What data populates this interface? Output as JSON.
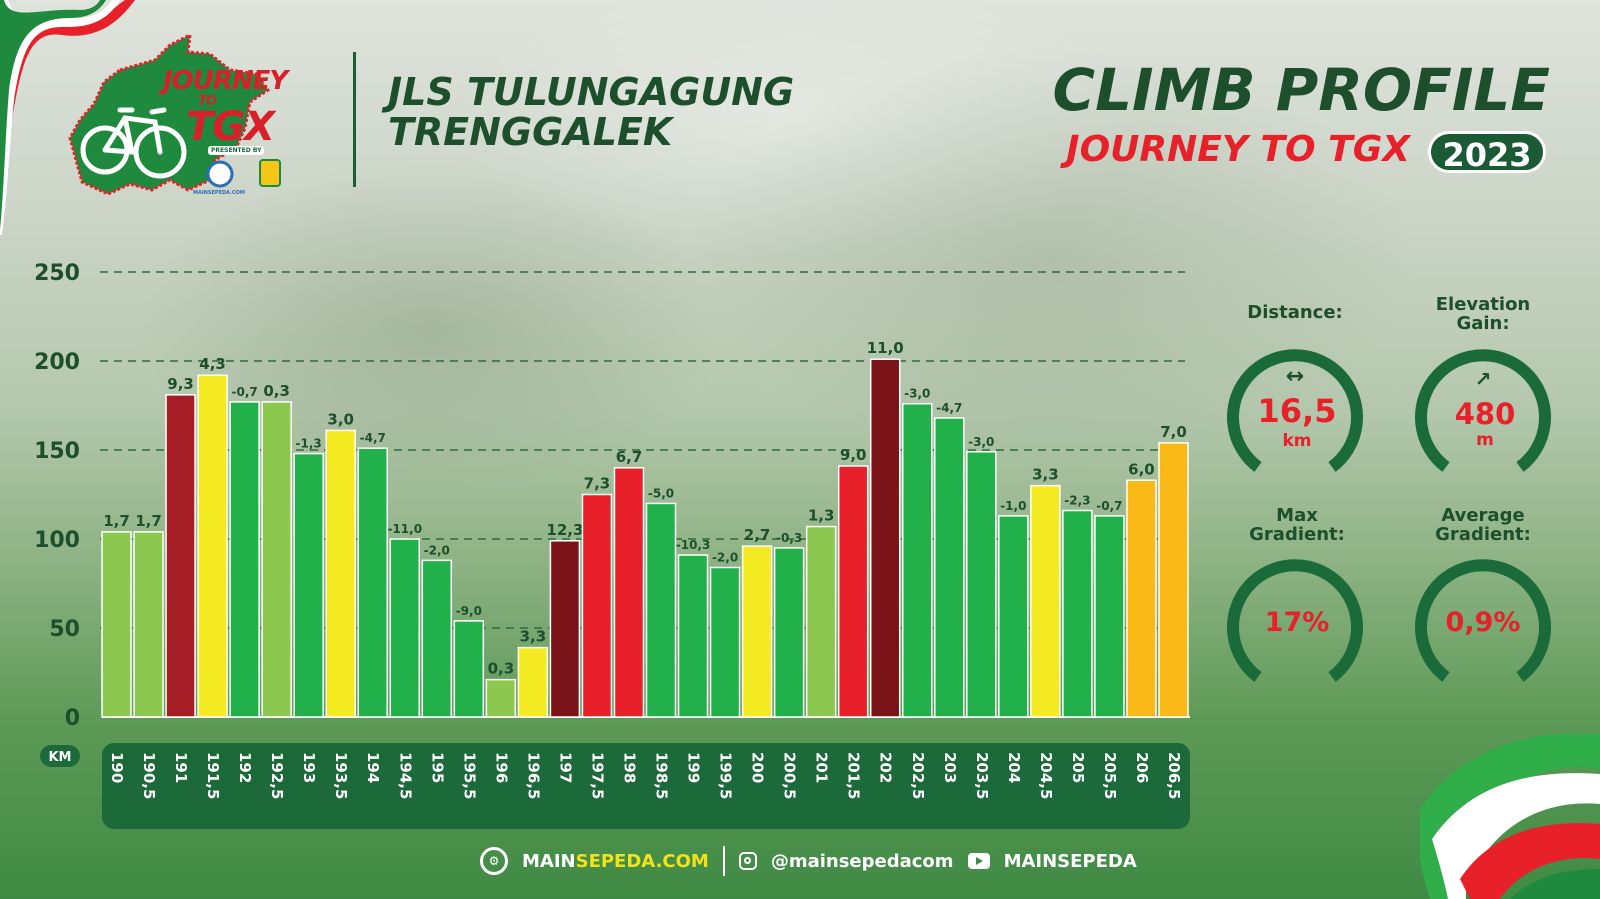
{
  "header": {
    "logo": {
      "line1": "JOURNEY",
      "line2": "TO",
      "line3": "TGX",
      "presented": "PRESENTED BY",
      "sponsor": "MAINSEPEDA.COM"
    },
    "route_line1": "JLS TULUNGAGUNG",
    "route_line2": "TRENGGALEK",
    "title": "CLIMB PROFILE",
    "subtitle": "JOURNEY TO TGX",
    "year": "2023"
  },
  "stats": {
    "distance": {
      "label": "Distance:",
      "value": "16,5",
      "unit": "km",
      "icon": "horizontal-arrows-icon"
    },
    "elevation": {
      "label1": "Elevation",
      "label2": "Gain:",
      "value": "480",
      "unit": "m",
      "icon": "arrow-up-right-icon"
    },
    "max_gradient": {
      "label1": "Max",
      "label2": "Gradient:",
      "value": "17%"
    },
    "avg_gradient": {
      "label1": "Average",
      "label2": "Gradient:",
      "value": "0,9%"
    }
  },
  "footer": {
    "site_part1": "MAIN",
    "site_part2": "SEPEDA.COM",
    "instagram": "@mainsepedacom",
    "youtube": "MAINSEPEDA",
    "icons": [
      "bike-gear-icon",
      "instagram-icon",
      "youtube-icon"
    ]
  },
  "colors": {
    "light_green": "#8cc850",
    "green": "#22b04b",
    "yellow": "#f3ea22",
    "orange": "#fbb917",
    "red": "#e8202a",
    "dark_red": "#a51e26",
    "maroon": "#7a1418",
    "title_green": "#1d4f2c",
    "axis_band": "#1c6a3a"
  },
  "chart_data": {
    "type": "bar",
    "x_unit": "KM",
    "ylim": [
      0,
      250
    ],
    "yticks": [
      0,
      50,
      100,
      150,
      200,
      250
    ],
    "grid": "dashed horizontal",
    "categories": [
      "190",
      "190,5",
      "191",
      "191,5",
      "192",
      "192,5",
      "193",
      "193,5",
      "194",
      "194,5",
      "195",
      "195,5",
      "196",
      "196,5",
      "197",
      "197,5",
      "198",
      "198,5",
      "199",
      "199,5",
      "200",
      "200,5",
      "201",
      "201,5",
      "202",
      "202,5",
      "203",
      "203,5",
      "204",
      "204,5",
      "205",
      "205,5",
      "206",
      "206,5"
    ],
    "values": [
      104,
      104,
      181,
      192,
      177,
      177,
      148,
      161,
      151,
      100,
      88,
      54,
      21,
      39,
      99,
      125,
      140,
      120,
      91,
      84,
      96,
      95,
      107,
      141,
      201,
      176,
      168,
      149,
      113,
      130,
      116,
      113,
      133,
      154
    ],
    "gradient_labels": [
      "1,7",
      "1,7",
      "9,3",
      "4,3",
      "-0,7",
      "0,3",
      "-1,3",
      "3,0",
      "-4,7",
      "-11,0",
      "-2,0",
      "-9,0",
      "0,3",
      "3,3",
      "12,3",
      "7,3",
      "6,7",
      "-5,0",
      "-10,3",
      "-2,0",
      "2,7",
      "-0,3",
      "1,3",
      "9,0",
      "11,0",
      "-3,0",
      "-4,7",
      "-3,0",
      "-1,0",
      "3,3",
      "-2,3",
      "-0,7",
      "6,0",
      "7,0"
    ],
    "bar_colors": [
      "light_green",
      "light_green",
      "dark_red",
      "yellow",
      "green",
      "light_green",
      "green",
      "yellow",
      "green",
      "green",
      "green",
      "green",
      "light_green",
      "yellow",
      "maroon",
      "red",
      "red",
      "green",
      "green",
      "green",
      "yellow",
      "green",
      "light_green",
      "red",
      "maroon",
      "green",
      "green",
      "green",
      "green",
      "yellow",
      "green",
      "green",
      "orange",
      "orange"
    ]
  }
}
